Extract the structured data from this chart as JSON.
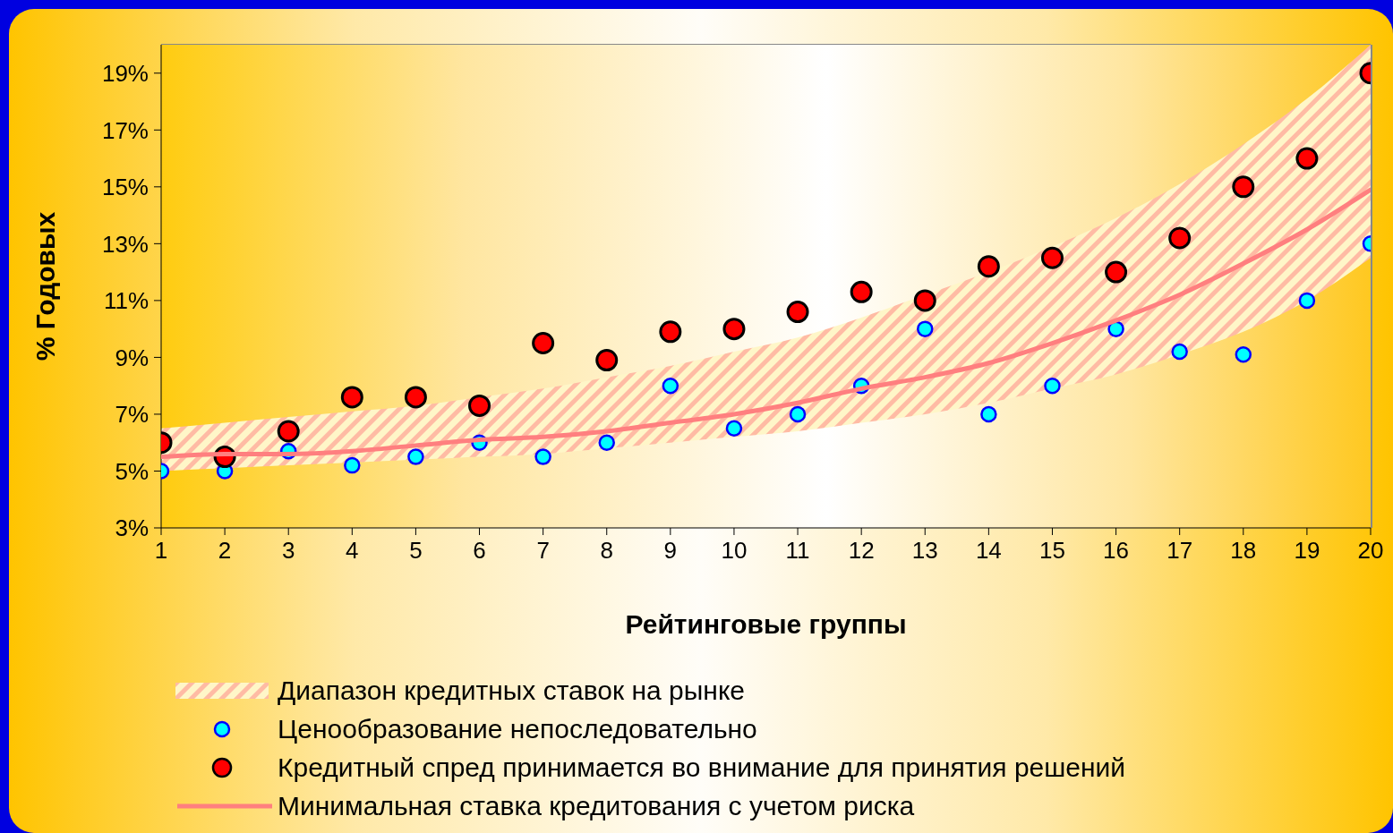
{
  "chart_data": {
    "type": "scatter",
    "xlabel": "Рейтинговые группы",
    "ylabel": "% Годовых",
    "x": [
      1,
      2,
      3,
      4,
      5,
      6,
      7,
      8,
      9,
      10,
      11,
      12,
      13,
      14,
      15,
      16,
      17,
      18,
      19,
      20
    ],
    "xlim": [
      1,
      20
    ],
    "xticks": [
      1,
      2,
      3,
      4,
      5,
      6,
      7,
      8,
      9,
      10,
      11,
      12,
      13,
      14,
      15,
      16,
      17,
      18,
      19,
      20
    ],
    "ylim": [
      3,
      20
    ],
    "yticks": [
      {
        "value": 3,
        "label": "3%"
      },
      {
        "value": 5,
        "label": "5%"
      },
      {
        "value": 7,
        "label": "7%"
      },
      {
        "value": 9,
        "label": "9%"
      },
      {
        "value": 11,
        "label": "11%"
      },
      {
        "value": 13,
        "label": "13%"
      },
      {
        "value": 15,
        "label": "15%"
      },
      {
        "value": 17,
        "label": "17%"
      },
      {
        "value": 19,
        "label": "19%"
      }
    ],
    "legend": "bottom",
    "grid": false,
    "annotations": [
      "Диапазон кредитных ставок на рынке"
    ],
    "series": [
      {
        "name": "Ценообразование непоследовательно",
        "type": "scatter",
        "marker": "circle",
        "color": "#00ffff",
        "values": [
          5.0,
          5.0,
          5.7,
          5.2,
          5.5,
          6.0,
          5.5,
          6.0,
          8.0,
          6.5,
          7.0,
          8.0,
          10.0,
          7.0,
          8.0,
          10.0,
          9.2,
          9.1,
          11.0,
          13.0
        ]
      },
      {
        "name": "Кредитный спред принимается во внимание для принятия решений",
        "type": "scatter",
        "marker": "circle",
        "color": "#ff0000",
        "values": [
          6.0,
          5.5,
          6.4,
          7.6,
          7.6,
          7.3,
          9.5,
          8.9,
          9.9,
          10.0,
          10.6,
          11.3,
          11.0,
          12.2,
          12.5,
          12.0,
          13.2,
          15.0,
          16.0,
          19.0
        ]
      },
      {
        "name": "Минимальная ставка кредитования с учетом риска",
        "type": "line",
        "marker": "none",
        "line_style": "solid",
        "color": "#ff7f7f",
        "values": [
          5.5,
          5.6,
          5.6,
          5.7,
          5.9,
          6.1,
          6.2,
          6.4,
          6.7,
          7.0,
          7.4,
          7.9,
          8.3,
          8.8,
          9.5,
          10.3,
          11.2,
          12.3,
          13.5,
          14.9
        ],
        "lower": [
          5.0,
          5.1,
          5.2,
          5.3,
          5.4,
          5.5,
          5.6,
          5.8,
          6.0,
          6.2,
          6.4,
          6.7,
          7.0,
          7.4,
          7.9,
          8.4,
          9.1,
          9.9,
          11.0,
          12.5
        ],
        "upper": [
          6.5,
          6.7,
          6.9,
          7.1,
          7.3,
          7.6,
          7.9,
          8.3,
          8.7,
          9.2,
          9.7,
          10.4,
          11.2,
          12.0,
          12.9,
          13.9,
          15.1,
          16.5,
          18.1,
          20.0
        ]
      }
    ]
  }
}
